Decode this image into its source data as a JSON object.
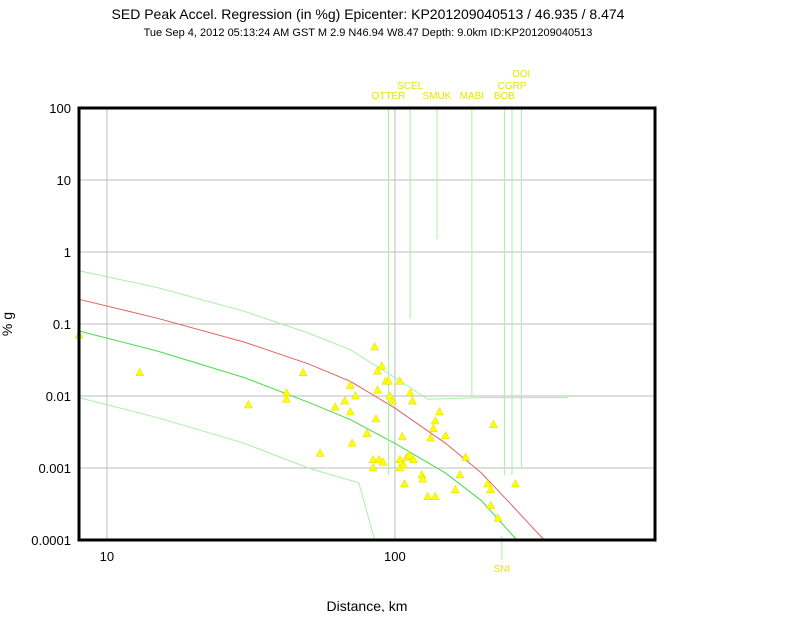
{
  "chart_data": {
    "type": "scatter",
    "title": "SED Peak Accel. Regression (in %g) Epicenter: KP201209040513 / 46.935 / 8.474",
    "subtitle": "Tue Sep  4, 2012 05:13:24 AM GST   M 2.9   N46.94 W8.47   Depth: 9.0km   ID:KP201209040513",
    "xlabel": "Distance, km",
    "ylabel": "% g",
    "x_scale": "log",
    "y_scale": "log",
    "xlim": [
      8,
      800
    ],
    "ylim": [
      0.0001,
      100
    ],
    "x_ticks": [
      {
        "value": 10,
        "label": "10"
      },
      {
        "value": 100,
        "label": "100"
      }
    ],
    "y_ticks": [
      {
        "value": 100,
        "label": "100"
      },
      {
        "value": 10,
        "label": "10"
      },
      {
        "value": 1,
        "label": "1"
      },
      {
        "value": 0.1,
        "label": "0.1"
      },
      {
        "value": 0.01,
        "label": "0.01"
      },
      {
        "value": 0.001,
        "label": "0.001"
      },
      {
        "value": 0.0001,
        "label": "0.0001"
      }
    ],
    "grid": true,
    "colors": {
      "points": "#ffff00",
      "points_stroke": "#d9d900",
      "station_labels": "#e6e600",
      "mean_curve": "#e06060",
      "lower_curve": "#44dd44",
      "bounds": "#a8f0a8",
      "grid": "#bdbdbd",
      "frame": "#000000"
    },
    "series": [
      {
        "role": "points",
        "points": [
          {
            "x": 8,
            "y": 0.07
          },
          {
            "x": 13,
            "y": 0.021
          },
          {
            "x": 31,
            "y": 0.0075
          },
          {
            "x": 42,
            "y": 0.011
          },
          {
            "x": 42,
            "y": 0.009
          },
          {
            "x": 48,
            "y": 0.021
          },
          {
            "x": 55,
            "y": 0.0016
          },
          {
            "x": 62,
            "y": 0.007
          },
          {
            "x": 67,
            "y": 0.0085
          },
          {
            "x": 70,
            "y": 0.014
          },
          {
            "x": 70,
            "y": 0.006
          },
          {
            "x": 71,
            "y": 0.0022
          },
          {
            "x": 73,
            "y": 0.01
          },
          {
            "x": 80,
            "y": 0.003
          },
          {
            "x": 84,
            "y": 0.0013
          },
          {
            "x": 84,
            "y": 0.001
          },
          {
            "x": 85,
            "y": 0.048
          },
          {
            "x": 87,
            "y": 0.022
          },
          {
            "x": 87,
            "y": 0.012
          },
          {
            "x": 86,
            "y": 0.0048
          },
          {
            "x": 88,
            "y": 0.0013
          },
          {
            "x": 90,
            "y": 0.026
          },
          {
            "x": 91,
            "y": 0.0012
          },
          {
            "x": 93,
            "y": 0.016
          },
          {
            "x": 95,
            "y": 0.016
          },
          {
            "x": 96,
            "y": 0.01
          },
          {
            "x": 98,
            "y": 0.0085
          },
          {
            "x": 104,
            "y": 0.016
          },
          {
            "x": 104,
            "y": 0.0013
          },
          {
            "x": 104,
            "y": 0.001
          },
          {
            "x": 106,
            "y": 0.0027
          },
          {
            "x": 107,
            "y": 0.0011
          },
          {
            "x": 108,
            "y": 0.0006
          },
          {
            "x": 110,
            "y": 0.0014
          },
          {
            "x": 112,
            "y": 0.0015
          },
          {
            "x": 113,
            "y": 0.011
          },
          {
            "x": 115,
            "y": 0.0085
          },
          {
            "x": 116,
            "y": 0.0013
          },
          {
            "x": 124,
            "y": 0.0008
          },
          {
            "x": 125,
            "y": 0.0007
          },
          {
            "x": 130,
            "y": 0.0004
          },
          {
            "x": 133,
            "y": 0.0026
          },
          {
            "x": 136,
            "y": 0.0035
          },
          {
            "x": 138,
            "y": 0.0045
          },
          {
            "x": 138,
            "y": 0.0004
          },
          {
            "x": 143,
            "y": 0.006
          },
          {
            "x": 150,
            "y": 0.0028
          },
          {
            "x": 162,
            "y": 0.0005
          },
          {
            "x": 168,
            "y": 0.0008
          },
          {
            "x": 176,
            "y": 0.0014
          },
          {
            "x": 210,
            "y": 0.0006
          },
          {
            "x": 215,
            "y": 0.0005
          },
          {
            "x": 215,
            "y": 0.0003
          },
          {
            "x": 220,
            "y": 0.004
          },
          {
            "x": 228,
            "y": 0.0002
          },
          {
            "x": 262,
            "y": 0.0006
          }
        ]
      },
      {
        "role": "mean-curve",
        "points": [
          {
            "x": 8,
            "y": 0.22
          },
          {
            "x": 15,
            "y": 0.12
          },
          {
            "x": 30,
            "y": 0.056
          },
          {
            "x": 50,
            "y": 0.028
          },
          {
            "x": 70,
            "y": 0.016
          },
          {
            "x": 100,
            "y": 0.0068
          },
          {
            "x": 150,
            "y": 0.0022
          },
          {
            "x": 200,
            "y": 0.00085
          },
          {
            "x": 250,
            "y": 0.00033
          },
          {
            "x": 300,
            "y": 0.00015
          },
          {
            "x": 330,
            "y": 0.0001
          }
        ]
      },
      {
        "role": "lower-curve",
        "points": [
          {
            "x": 8,
            "y": 0.08
          },
          {
            "x": 15,
            "y": 0.042
          },
          {
            "x": 30,
            "y": 0.018
          },
          {
            "x": 50,
            "y": 0.0082
          },
          {
            "x": 70,
            "y": 0.0047
          },
          {
            "x": 100,
            "y": 0.0022
          },
          {
            "x": 150,
            "y": 0.00085
          },
          {
            "x": 200,
            "y": 0.00035
          },
          {
            "x": 250,
            "y": 0.00013
          },
          {
            "x": 265,
            "y": 0.0001
          }
        ]
      },
      {
        "role": "upper-bound",
        "points": [
          {
            "x": 8,
            "y": 0.55
          },
          {
            "x": 15,
            "y": 0.32
          },
          {
            "x": 30,
            "y": 0.15
          },
          {
            "x": 50,
            "y": 0.075
          },
          {
            "x": 70,
            "y": 0.044
          },
          {
            "x": 100,
            "y": 0.018
          },
          {
            "x": 130,
            "y": 0.009
          },
          {
            "x": 200,
            "y": 0.0095
          },
          {
            "x": 300,
            "y": 0.0095
          },
          {
            "x": 400,
            "y": 0.0095
          }
        ]
      },
      {
        "role": "lower-bound",
        "points": [
          {
            "x": 8,
            "y": 0.0095
          },
          {
            "x": 15,
            "y": 0.005
          },
          {
            "x": 30,
            "y": 0.0022
          },
          {
            "x": 50,
            "y": 0.001
          },
          {
            "x": 75,
            "y": 0.00062
          },
          {
            "x": 85,
            "y": 0.0001
          }
        ]
      }
    ],
    "stations": [
      {
        "name": "OTTER",
        "x": 95,
        "y_end": 0.0008,
        "row": 0
      },
      {
        "name": "SCEL",
        "x": 113,
        "y_end": 0.12,
        "row": 1
      },
      {
        "name": "SMUK",
        "x": 140,
        "y_end": 1.5,
        "row": 0
      },
      {
        "name": "MABI",
        "x": 185,
        "y_end": 0.01,
        "row": 0
      },
      {
        "name": "BOB",
        "x": 240,
        "y_end": 0.0008,
        "row": 0
      },
      {
        "name": "CGRP",
        "x": 255,
        "y_end": 0.0008,
        "row": 1
      },
      {
        "name": "DOI",
        "x": 275,
        "y_end": 0.001,
        "row": 2
      },
      {
        "name": "SNI",
        "x": 235,
        "y_end": 0.0001,
        "row": -1
      }
    ]
  }
}
